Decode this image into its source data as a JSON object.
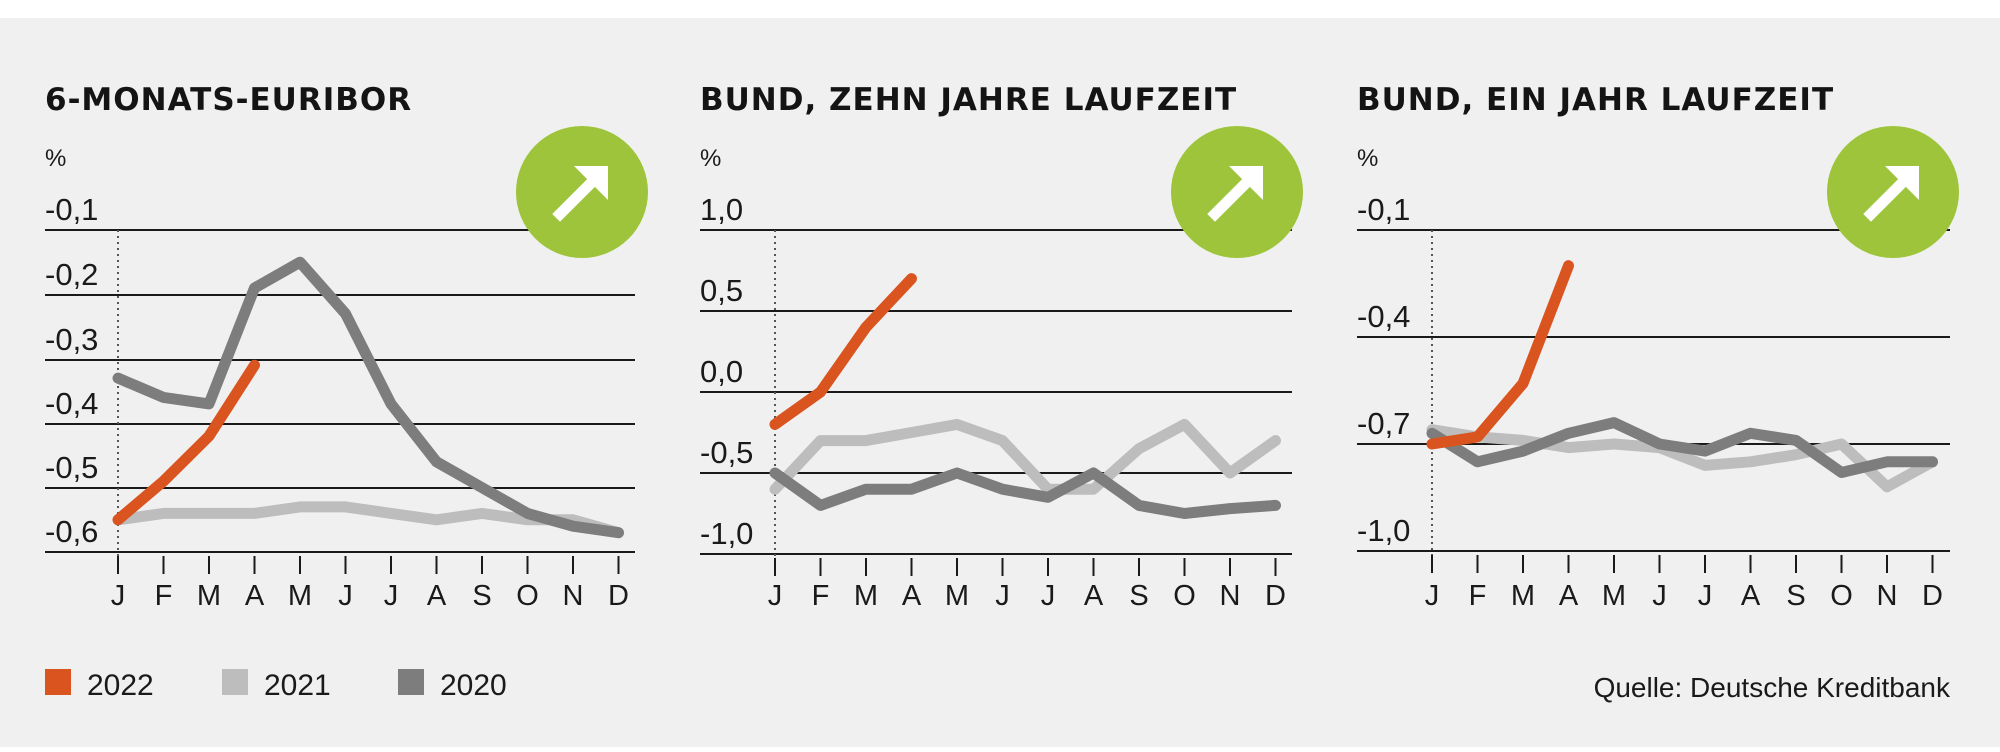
{
  "legend": [
    {
      "label": "2022",
      "color": "#d9541e"
    },
    {
      "label": "2021",
      "color": "#bdbdbd"
    },
    {
      "label": "2020",
      "color": "#7d7d7d"
    }
  ],
  "source": "Quelle: Deutsche Kreditbank",
  "trend_icon": "arrow-up-right-icon",
  "trend_color": "#9dc43a",
  "chart_data": [
    {
      "type": "line",
      "title": "6-MONATS-EURIBOR",
      "unit": "%",
      "x": [
        "J",
        "F",
        "M",
        "A",
        "M",
        "J",
        "J",
        "A",
        "S",
        "O",
        "N",
        "D"
      ],
      "yticks": [
        "-0,1",
        "-0,2",
        "-0,3",
        "-0,4",
        "-0,5",
        "-0,6"
      ],
      "ylim": [
        -0.65,
        -0.1
      ],
      "series": [
        {
          "name": "2022",
          "values": [
            -0.55,
            -0.49,
            -0.42,
            -0.31,
            null,
            null,
            null,
            null,
            null,
            null,
            null,
            null
          ]
        },
        {
          "name": "2021",
          "values": [
            -0.55,
            -0.54,
            -0.54,
            -0.54,
            -0.53,
            -0.53,
            -0.54,
            -0.55,
            -0.54,
            -0.55,
            -0.55,
            -0.57
          ]
        },
        {
          "name": "2020",
          "values": [
            -0.33,
            -0.36,
            -0.37,
            -0.19,
            -0.15,
            -0.23,
            -0.37,
            -0.46,
            -0.5,
            -0.54,
            -0.56,
            -0.57
          ]
        }
      ]
    },
    {
      "type": "line",
      "title": "BUND, ZEHN JAHRE LAUFZEIT",
      "unit": "%",
      "x": [
        "J",
        "F",
        "M",
        "A",
        "M",
        "J",
        "J",
        "A",
        "S",
        "O",
        "N",
        "D"
      ],
      "yticks": [
        "1,0",
        "0,5",
        "0,0",
        "-0,5",
        "-1,0"
      ],
      "ylim": [
        -1.1,
        1.0
      ],
      "series": [
        {
          "name": "2022",
          "values": [
            -0.2,
            0.0,
            0.4,
            0.7,
            null,
            null,
            null,
            null,
            null,
            null,
            null,
            null
          ]
        },
        {
          "name": "2021",
          "values": [
            -0.6,
            -0.3,
            -0.3,
            -0.25,
            -0.2,
            -0.3,
            -0.6,
            -0.6,
            -0.35,
            -0.2,
            -0.5,
            -0.3
          ]
        },
        {
          "name": "2020",
          "values": [
            -0.5,
            -0.7,
            -0.6,
            -0.6,
            -0.5,
            -0.6,
            -0.65,
            -0.5,
            -0.7,
            -0.75,
            -0.72,
            -0.7
          ]
        }
      ]
    },
    {
      "type": "line",
      "title": "BUND, EIN JAHR LAUFZEIT",
      "unit": "%",
      "x": [
        "J",
        "F",
        "M",
        "A",
        "M",
        "J",
        "J",
        "A",
        "S",
        "O",
        "N",
        "D"
      ],
      "yticks": [
        "-0,1",
        "-0,4",
        "-0,7",
        "-1,0"
      ],
      "ylim": [
        -1.1,
        -0.1
      ],
      "series": [
        {
          "name": "2022",
          "values": [
            -0.7,
            -0.68,
            -0.53,
            -0.2,
            null,
            null,
            null,
            null,
            null,
            null,
            null,
            null
          ]
        },
        {
          "name": "2021",
          "values": [
            -0.66,
            -0.68,
            -0.69,
            -0.71,
            -0.7,
            -0.71,
            -0.76,
            -0.75,
            -0.73,
            -0.7,
            -0.82,
            -0.75
          ]
        },
        {
          "name": "2020",
          "values": [
            -0.67,
            -0.75,
            -0.72,
            -0.67,
            -0.64,
            -0.7,
            -0.72,
            -0.67,
            -0.69,
            -0.78,
            -0.75,
            -0.75
          ]
        }
      ]
    }
  ]
}
